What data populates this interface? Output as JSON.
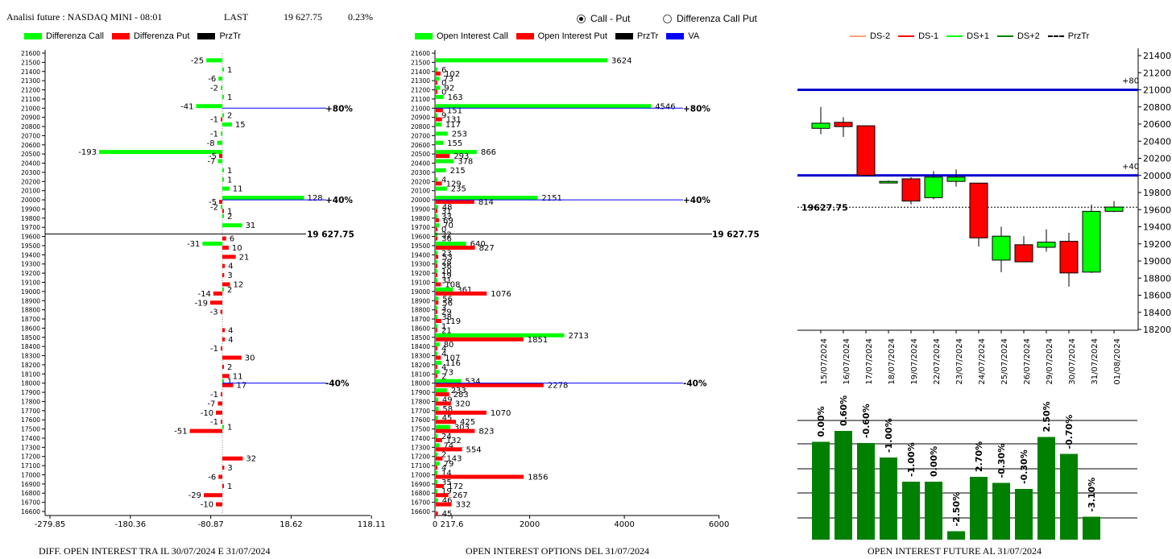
{
  "header": {
    "title": "Analisi future : NASDAQ MINI - 08:01",
    "last_label": "LAST",
    "last_value": "19 627.75",
    "change": "0.23%"
  },
  "radio": {
    "option1": "Call - Put",
    "option2": "Differenza Call Put",
    "selected": "Call - Put"
  },
  "colors": {
    "green": "#00ff00",
    "red": "#ff0000",
    "black": "#000000",
    "blue": "#0000ff",
    "darkgreen": "#008000",
    "ds2": "#ffa07a"
  },
  "legend1": {
    "a": "Differenza Call",
    "b": "Differenza Put",
    "c": "PrzTr"
  },
  "legend2": {
    "a": "Open Interest Call",
    "b": "Open Interest Put",
    "c": "PrzTr",
    "d": "VA"
  },
  "legend3": {
    "a": "DS-2",
    "b": "DS-1",
    "c": "DS+1",
    "d": "DS+2",
    "e": "PrzTr"
  },
  "footers": {
    "f1": "DIFF. OPEN INTEREST TRA IL 30/07/2024 E 31/07/2024",
    "f2": "OPEN INTEREST OPTIONS DEL 31/07/2024",
    "f3": "OPEN INTEREST FUTURE AL 31/07/2024"
  },
  "chart_data": [
    {
      "type": "bar",
      "name": "diff",
      "strikes": [
        21600,
        21500,
        21400,
        21300,
        21200,
        21100,
        21000,
        20900,
        20800,
        20700,
        20600,
        20500,
        20400,
        20300,
        20200,
        20100,
        20000,
        19900,
        19800,
        19700,
        19600,
        19500,
        19400,
        19300,
        19200,
        19100,
        19000,
        18900,
        18800,
        18700,
        18600,
        18500,
        18400,
        18300,
        18200,
        18100,
        18000,
        17900,
        17800,
        17700,
        17600,
        17500,
        17400,
        17300,
        17200,
        17100,
        17000,
        16900,
        16800,
        16700,
        16600
      ],
      "x_ticks": [
        "-279.85",
        "-180.36",
        "-80.87",
        "18.62",
        "118.11",
        "217.6"
      ],
      "call": [
        [
          21500,
          -25
        ],
        [
          21400,
          1
        ],
        [
          21300,
          -6
        ],
        [
          21200,
          -2
        ],
        [
          21100,
          1
        ],
        [
          21000,
          -41
        ],
        [
          20900,
          2
        ],
        [
          20800,
          15
        ],
        [
          20700,
          -1
        ],
        [
          20600,
          -8
        ],
        [
          20500,
          -193
        ],
        [
          20400,
          -7
        ],
        [
          20300,
          1
        ],
        [
          20200,
          1
        ],
        [
          20100,
          11
        ],
        [
          20000,
          128
        ],
        [
          19900,
          -2
        ],
        [
          19800,
          2
        ],
        [
          19700,
          31
        ],
        [
          19500,
          -31
        ],
        [
          19000,
          2
        ],
        [
          18000,
          1
        ],
        [
          17500,
          1
        ]
      ],
      "put": [
        [
          20900,
          -1
        ],
        [
          20500,
          -5
        ],
        [
          20000,
          -5
        ],
        [
          19900,
          1
        ],
        [
          19600,
          6
        ],
        [
          19500,
          10
        ],
        [
          19400,
          21
        ],
        [
          19300,
          4
        ],
        [
          19200,
          3
        ],
        [
          19100,
          12
        ],
        [
          19000,
          -14
        ],
        [
          18900,
          -19
        ],
        [
          18800,
          -3
        ],
        [
          18600,
          4
        ],
        [
          18500,
          4
        ],
        [
          18400,
          -1
        ],
        [
          18300,
          30
        ],
        [
          18200,
          2
        ],
        [
          18100,
          11
        ],
        [
          18000,
          17
        ],
        [
          17900,
          -1
        ],
        [
          17800,
          -7
        ],
        [
          17700,
          -10
        ],
        [
          17600,
          -1
        ],
        [
          17500,
          -51
        ],
        [
          17200,
          32
        ],
        [
          17100,
          3
        ],
        [
          17000,
          -6
        ],
        [
          16900,
          1
        ],
        [
          16800,
          -29
        ],
        [
          16700,
          -10
        ]
      ],
      "lines": [
        {
          "strike": 21000,
          "label": "+80%"
        },
        {
          "strike": 20000,
          "label": "+40%"
        },
        {
          "strike": 18000,
          "label": "-40%"
        }
      ],
      "prztr": "19 627.75"
    },
    {
      "type": "bar",
      "name": "oi",
      "x_ticks": [
        "0",
        "2000",
        "4000",
        "6000"
      ],
      "call": [
        [
          21500,
          3624
        ],
        [
          21400,
          6
        ],
        [
          21300,
          73
        ],
        [
          21200,
          92
        ],
        [
          21100,
          163
        ],
        [
          21000,
          4546
        ],
        [
          20900,
          9
        ],
        [
          20800,
          117
        ],
        [
          20700,
          253
        ],
        [
          20600,
          155
        ],
        [
          20500,
          866
        ],
        [
          20400,
          378
        ],
        [
          20300,
          215
        ],
        [
          20200,
          4
        ],
        [
          20100,
          235
        ],
        [
          20000,
          2151
        ],
        [
          19900,
          48
        ],
        [
          19800,
          33
        ],
        [
          19700,
          70
        ],
        [
          19600,
          32
        ],
        [
          19500,
          640
        ],
        [
          19400,
          23
        ],
        [
          19300,
          28
        ],
        [
          19200,
          10
        ],
        [
          19100,
          31
        ],
        [
          19000,
          361
        ],
        [
          18900,
          56
        ],
        [
          18800,
          3
        ],
        [
          18700,
          38
        ],
        [
          18600,
          1
        ],
        [
          18500,
          2713
        ],
        [
          18400,
          80
        ],
        [
          18300,
          4
        ],
        [
          18200,
          116
        ],
        [
          18100,
          73
        ],
        [
          18000,
          534
        ],
        [
          17900,
          233
        ],
        [
          17800,
          49
        ],
        [
          17700,
          58
        ],
        [
          17600,
          45
        ],
        [
          17500,
          303
        ],
        [
          17400,
          24
        ],
        [
          17300,
          74
        ],
        [
          17200,
          2
        ],
        [
          17100,
          79
        ],
        [
          17000,
          14
        ],
        [
          16900,
          35
        ],
        [
          16800,
          19
        ],
        [
          16700,
          46
        ]
      ],
      "put": [
        [
          21400,
          102
        ],
        [
          21300,
          0
        ],
        [
          21200,
          0
        ],
        [
          21000,
          151
        ],
        [
          20900,
          131
        ],
        [
          20500,
          293
        ],
        [
          20200,
          129
        ],
        [
          20000,
          814
        ],
        [
          19900,
          31
        ],
        [
          19800,
          69
        ],
        [
          19700,
          0
        ],
        [
          19600,
          36
        ],
        [
          19500,
          827
        ],
        [
          19400,
          53
        ],
        [
          19300,
          36
        ],
        [
          19200,
          19
        ],
        [
          19100,
          108
        ],
        [
          19000,
          1076
        ],
        [
          18900,
          56
        ],
        [
          18800,
          29
        ],
        [
          18700,
          119
        ],
        [
          18600,
          21
        ],
        [
          18500,
          1851
        ],
        [
          18400,
          4
        ],
        [
          18300,
          107
        ],
        [
          18200,
          4
        ],
        [
          18100,
          2
        ],
        [
          18000,
          2278
        ],
        [
          17900,
          283
        ],
        [
          17800,
          320
        ],
        [
          17700,
          1070
        ],
        [
          17600,
          425
        ],
        [
          17500,
          823
        ],
        [
          17400,
          132
        ],
        [
          17300,
          554
        ],
        [
          17200,
          143
        ],
        [
          17100,
          4
        ],
        [
          17000,
          1856
        ],
        [
          16900,
          172
        ],
        [
          16800,
          267
        ],
        [
          16700,
          332
        ],
        [
          16600,
          45
        ]
      ],
      "lines": [
        {
          "strike": 21000,
          "label": "+80%"
        },
        {
          "strike": 20000,
          "label": "+40%"
        },
        {
          "strike": 18000,
          "label": "-40%"
        }
      ],
      "prztr": "19 627.75"
    },
    {
      "type": "candlestick",
      "name": "future",
      "dates": [
        "15/07/2024",
        "16/07/2024",
        "17/07/2024",
        "18/07/2024",
        "19/07/2024",
        "22/07/2024",
        "23/07/2024",
        "24/07/2024",
        "25/07/2024",
        "26/07/2024",
        "29/07/2024",
        "30/07/2024",
        "31/07/2024",
        "01/08/2024"
      ],
      "ohlc": [
        [
          20550,
          20800,
          20480,
          20610
        ],
        [
          20620,
          20680,
          20450,
          20570
        ],
        [
          20580,
          20580,
          20000,
          20000
        ],
        [
          19930,
          19940,
          19920,
          19930
        ],
        [
          19960,
          19980,
          19660,
          19700
        ],
        [
          19740,
          20050,
          19720,
          19980
        ],
        [
          19930,
          20070,
          19870,
          19980
        ],
        [
          19910,
          19910,
          19170,
          19270
        ],
        [
          19010,
          19400,
          18870,
          19290
        ],
        [
          19190,
          19290,
          18990,
          18990
        ],
        [
          19160,
          19370,
          19110,
          19220
        ],
        [
          19230,
          19330,
          18700,
          18860
        ],
        [
          18870,
          19660,
          18860,
          19580
        ],
        [
          19580,
          19700,
          19570,
          19630
        ]
      ],
      "y_ticks": [
        21400,
        21200,
        21000,
        20800,
        20600,
        20400,
        20200,
        20000,
        19800,
        19600,
        19400,
        19200,
        19000,
        18800,
        18600,
        18400,
        18200
      ],
      "lines": [
        {
          "value": 21000,
          "label": "+80"
        },
        {
          "value": 20000,
          "label": "+40"
        }
      ],
      "prztr": "19627.75"
    },
    {
      "type": "bar",
      "name": "oi_change",
      "values": [
        [
          0,
          "0.00%"
        ],
        [
          0.6,
          "0.60%"
        ],
        [
          -0.6,
          "-0.60%"
        ],
        [
          -1.0,
          "-1.00%"
        ],
        [
          -1.0,
          "-1.00%"
        ],
        [
          0,
          "0.00%"
        ],
        [
          -2.5,
          "-2.50%"
        ],
        [
          2.7,
          "2.70%"
        ],
        [
          -0.3,
          "-0.30%"
        ],
        [
          -0.3,
          "-0.30%"
        ],
        [
          2.5,
          "2.50%"
        ],
        [
          -0.7,
          "-0.70%"
        ],
        [
          -3.1,
          "-3.10%"
        ]
      ],
      "heights": [
        0.81,
        0.9,
        0.8,
        0.68,
        0.48,
        0.48,
        0.07,
        0.52,
        0.47,
        0.42,
        0.85,
        0.71,
        0.19
      ]
    }
  ]
}
